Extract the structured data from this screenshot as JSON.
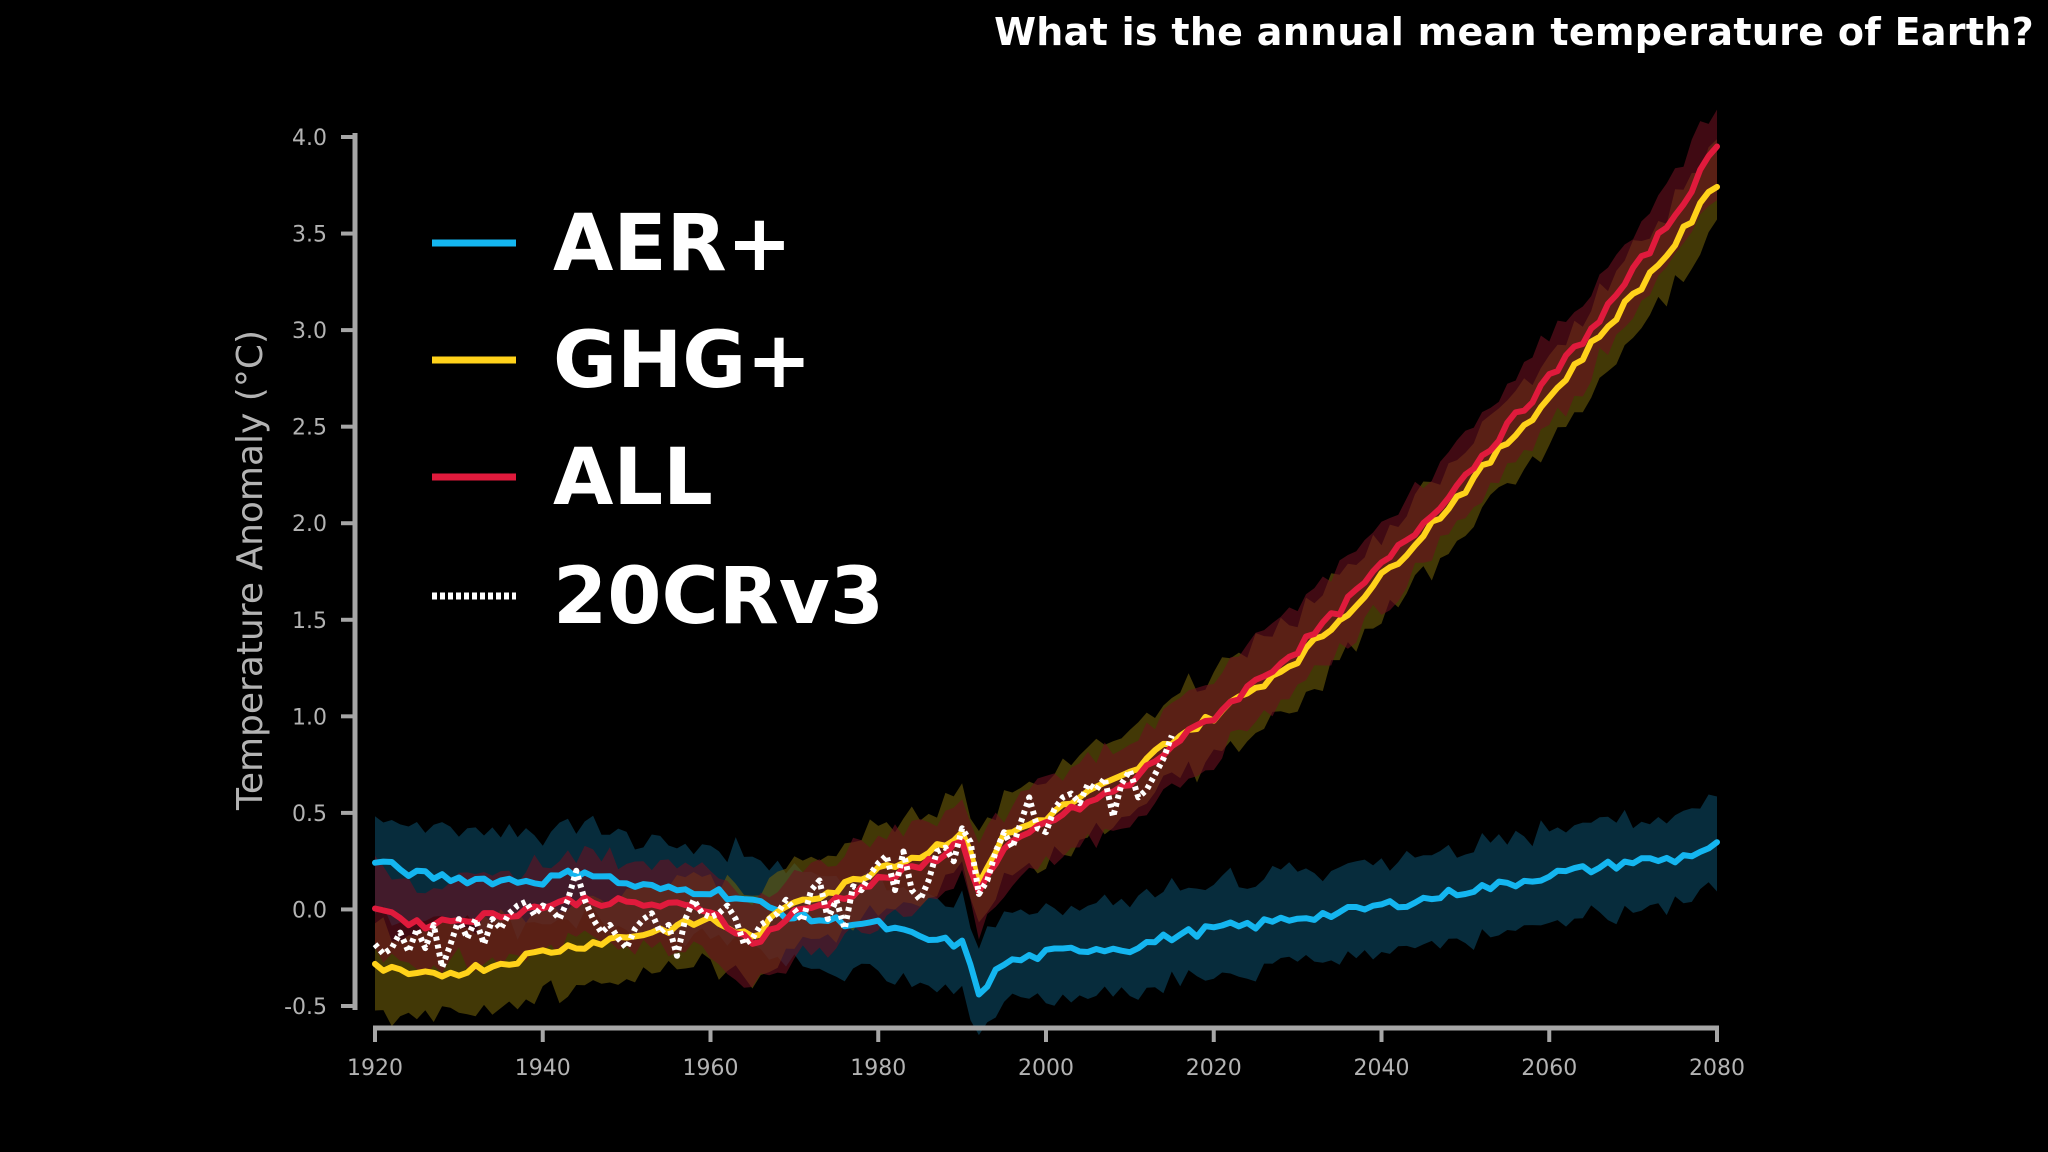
{
  "header": {
    "question": "What is the annual mean temperature of Earth?"
  },
  "colors": {
    "background": "#000000",
    "axis": "#a6a6a6",
    "tick_text": "#b3b3b3",
    "aer": "#14b6f0",
    "aer_band": "#0c4a64",
    "ghg": "#ffd21a",
    "ghg_band": "#6e5e0a",
    "all": "#e01a3c",
    "all_band": "#6a1020",
    "obs": "#ffffff"
  },
  "chart_data": {
    "type": "line",
    "title": "",
    "ylabel": "Temperature Anomaly (°C)",
    "xlabel": "",
    "xlim": [
      1920,
      2080
    ],
    "ylim": [
      -0.5,
      4.0
    ],
    "xticks": [
      "1920",
      "1940",
      "1960",
      "1980",
      "2000",
      "2020",
      "2040",
      "2060",
      "2080"
    ],
    "yticks": [
      "4.0",
      "3.5",
      "3.0",
      "2.5",
      "2.0",
      "1.5",
      "1.0",
      "0.5",
      "0.0",
      "-0.5"
    ],
    "legend_position": "top-left",
    "series": [
      {
        "name": "AER+",
        "key": "aer",
        "style": "solid",
        "band_half_width": 0.24,
        "points": [
          [
            1920,
            0.25
          ],
          [
            1925,
            0.18
          ],
          [
            1930,
            0.16
          ],
          [
            1935,
            0.15
          ],
          [
            1940,
            0.15
          ],
          [
            1945,
            0.2
          ],
          [
            1950,
            0.13
          ],
          [
            1955,
            0.1
          ],
          [
            1960,
            0.1
          ],
          [
            1965,
            0.04
          ],
          [
            1970,
            -0.04
          ],
          [
            1975,
            -0.06
          ],
          [
            1980,
            -0.08
          ],
          [
            1985,
            -0.15
          ],
          [
            1990,
            -0.18
          ],
          [
            1992,
            -0.43
          ],
          [
            1995,
            -0.28
          ],
          [
            2000,
            -0.23
          ],
          [
            2005,
            -0.2
          ],
          [
            2010,
            -0.2
          ],
          [
            2015,
            -0.14
          ],
          [
            2020,
            -0.1
          ],
          [
            2025,
            -0.08
          ],
          [
            2030,
            -0.04
          ],
          [
            2035,
            -0.02
          ],
          [
            2040,
            0.02
          ],
          [
            2045,
            0.05
          ],
          [
            2050,
            0.1
          ],
          [
            2055,
            0.13
          ],
          [
            2060,
            0.18
          ],
          [
            2065,
            0.21
          ],
          [
            2070,
            0.25
          ],
          [
            2075,
            0.26
          ],
          [
            2080,
            0.33
          ]
        ]
      },
      {
        "name": "GHG+",
        "key": "ghg",
        "style": "solid",
        "band_half_width": 0.22,
        "points": [
          [
            1920,
            -0.3
          ],
          [
            1925,
            -0.35
          ],
          [
            1930,
            -0.32
          ],
          [
            1935,
            -0.28
          ],
          [
            1940,
            -0.22
          ],
          [
            1945,
            -0.18
          ],
          [
            1950,
            -0.14
          ],
          [
            1955,
            -0.1
          ],
          [
            1960,
            -0.05
          ],
          [
            1965,
            -0.15
          ],
          [
            1970,
            0.05
          ],
          [
            1975,
            0.1
          ],
          [
            1980,
            0.22
          ],
          [
            1985,
            0.28
          ],
          [
            1990,
            0.4
          ],
          [
            1992,
            0.15
          ],
          [
            1995,
            0.38
          ],
          [
            2000,
            0.48
          ],
          [
            2005,
            0.6
          ],
          [
            2010,
            0.7
          ],
          [
            2015,
            0.88
          ],
          [
            2020,
            1.0
          ],
          [
            2025,
            1.15
          ],
          [
            2030,
            1.3
          ],
          [
            2035,
            1.5
          ],
          [
            2040,
            1.72
          ],
          [
            2045,
            1.95
          ],
          [
            2050,
            2.18
          ],
          [
            2055,
            2.42
          ],
          [
            2060,
            2.65
          ],
          [
            2065,
            2.92
          ],
          [
            2070,
            3.18
          ],
          [
            2075,
            3.45
          ],
          [
            2080,
            3.76
          ]
        ]
      },
      {
        "name": "ALL",
        "key": "all",
        "style": "solid",
        "band_half_width": 0.22,
        "points": [
          [
            1920,
            0.02
          ],
          [
            1925,
            -0.08
          ],
          [
            1930,
            -0.05
          ],
          [
            1935,
            -0.03
          ],
          [
            1940,
            0.02
          ],
          [
            1945,
            0.05
          ],
          [
            1950,
            0.03
          ],
          [
            1955,
            0.02
          ],
          [
            1960,
            0.0
          ],
          [
            1965,
            -0.18
          ],
          [
            1970,
            -0.02
          ],
          [
            1975,
            0.05
          ],
          [
            1980,
            0.15
          ],
          [
            1985,
            0.22
          ],
          [
            1990,
            0.35
          ],
          [
            1992,
            0.1
          ],
          [
            1995,
            0.3
          ],
          [
            2000,
            0.45
          ],
          [
            2005,
            0.55
          ],
          [
            2010,
            0.65
          ],
          [
            2015,
            0.85
          ],
          [
            2020,
            1.0
          ],
          [
            2025,
            1.18
          ],
          [
            2030,
            1.35
          ],
          [
            2035,
            1.55
          ],
          [
            2040,
            1.78
          ],
          [
            2045,
            2.0
          ],
          [
            2050,
            2.25
          ],
          [
            2055,
            2.5
          ],
          [
            2060,
            2.75
          ],
          [
            2065,
            3.0
          ],
          [
            2070,
            3.3
          ],
          [
            2075,
            3.6
          ],
          [
            2080,
            3.95
          ]
        ]
      },
      {
        "name": "20CRv3",
        "key": "obs",
        "style": "dotted",
        "points": [
          [
            1920,
            -0.18
          ],
          [
            1921,
            -0.23
          ],
          [
            1922,
            -0.2
          ],
          [
            1923,
            -0.12
          ],
          [
            1924,
            -0.22
          ],
          [
            1925,
            -0.1
          ],
          [
            1926,
            -0.2
          ],
          [
            1927,
            -0.08
          ],
          [
            1928,
            -0.3
          ],
          [
            1929,
            -0.18
          ],
          [
            1930,
            -0.05
          ],
          [
            1931,
            -0.15
          ],
          [
            1932,
            -0.05
          ],
          [
            1933,
            -0.18
          ],
          [
            1934,
            -0.05
          ],
          [
            1935,
            -0.1
          ],
          [
            1936,
            -0.02
          ],
          [
            1937,
            0.02
          ],
          [
            1938,
            0.04
          ],
          [
            1939,
            -0.03
          ],
          [
            1940,
            0.02
          ],
          [
            1941,
            0.0
          ],
          [
            1942,
            -0.05
          ],
          [
            1943,
            0.05
          ],
          [
            1944,
            0.2
          ],
          [
            1945,
            0.05
          ],
          [
            1946,
            -0.05
          ],
          [
            1947,
            -0.12
          ],
          [
            1948,
            -0.08
          ],
          [
            1949,
            -0.15
          ],
          [
            1950,
            -0.2
          ],
          [
            1951,
            -0.1
          ],
          [
            1952,
            -0.05
          ],
          [
            1953,
            -0.02
          ],
          [
            1954,
            -0.12
          ],
          [
            1955,
            -0.08
          ],
          [
            1956,
            -0.24
          ],
          [
            1957,
            -0.05
          ],
          [
            1958,
            0.05
          ],
          [
            1959,
            -0.02
          ],
          [
            1960,
            -0.04
          ],
          [
            1961,
            -0.02
          ],
          [
            1962,
            0.02
          ],
          [
            1963,
            -0.05
          ],
          [
            1964,
            -0.18
          ],
          [
            1965,
            -0.15
          ],
          [
            1966,
            -0.08
          ],
          [
            1967,
            -0.05
          ],
          [
            1968,
            -0.02
          ],
          [
            1969,
            0.05
          ],
          [
            1970,
            0.0
          ],
          [
            1971,
            -0.06
          ],
          [
            1972,
            0.1
          ],
          [
            1973,
            0.15
          ],
          [
            1974,
            -0.05
          ],
          [
            1975,
            0.05
          ],
          [
            1976,
            -0.1
          ],
          [
            1977,
            0.12
          ],
          [
            1978,
            0.1
          ],
          [
            1979,
            0.18
          ],
          [
            1980,
            0.24
          ],
          [
            1981,
            0.28
          ],
          [
            1982,
            0.1
          ],
          [
            1983,
            0.3
          ],
          [
            1984,
            0.1
          ],
          [
            1985,
            0.05
          ],
          [
            1986,
            0.15
          ],
          [
            1987,
            0.3
          ],
          [
            1988,
            0.32
          ],
          [
            1989,
            0.25
          ],
          [
            1990,
            0.42
          ],
          [
            1991,
            0.35
          ],
          [
            1992,
            0.08
          ],
          [
            1993,
            0.15
          ],
          [
            1994,
            0.3
          ],
          [
            1995,
            0.4
          ],
          [
            1996,
            0.32
          ],
          [
            1997,
            0.45
          ],
          [
            1998,
            0.58
          ],
          [
            1999,
            0.42
          ],
          [
            2000,
            0.4
          ],
          [
            2001,
            0.52
          ],
          [
            2002,
            0.58
          ],
          [
            2003,
            0.6
          ],
          [
            2004,
            0.55
          ],
          [
            2005,
            0.65
          ],
          [
            2006,
            0.62
          ],
          [
            2007,
            0.68
          ],
          [
            2008,
            0.48
          ],
          [
            2009,
            0.65
          ],
          [
            2010,
            0.72
          ],
          [
            2011,
            0.58
          ],
          [
            2012,
            0.62
          ],
          [
            2013,
            0.7
          ],
          [
            2014,
            0.78
          ],
          [
            2015,
            0.9
          ]
        ]
      }
    ]
  }
}
